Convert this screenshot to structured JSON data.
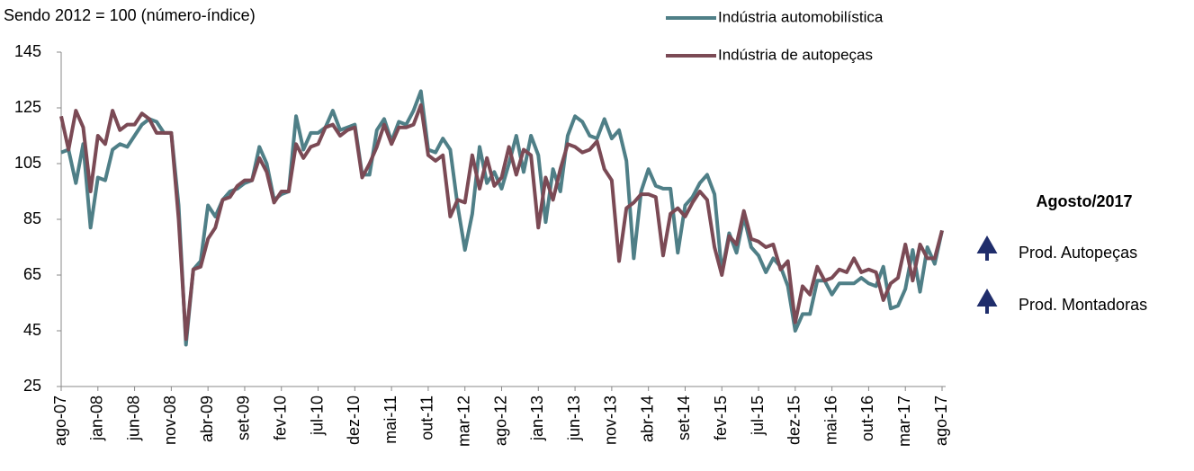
{
  "chart_data": {
    "type": "line",
    "subtitle": "Sendo 2012 = 100 (número-índice)",
    "categories": [
      "ago-07",
      null,
      null,
      null,
      null,
      "jan-08",
      null,
      null,
      null,
      null,
      "jun-08",
      null,
      null,
      null,
      null,
      "nov-08",
      null,
      null,
      null,
      null,
      "abr-09",
      null,
      null,
      null,
      null,
      "set-09",
      null,
      null,
      null,
      null,
      "fev-10",
      null,
      null,
      null,
      null,
      "jul-10",
      null,
      null,
      null,
      null,
      "dez-10",
      null,
      null,
      null,
      null,
      "mai-11",
      null,
      null,
      null,
      null,
      "out-11",
      null,
      null,
      null,
      null,
      "mar-12",
      null,
      null,
      null,
      null,
      "ago-12",
      null,
      null,
      null,
      null,
      "jan-13",
      null,
      null,
      null,
      null,
      "jun-13",
      null,
      null,
      null,
      null,
      "nov-13",
      null,
      null,
      null,
      null,
      "abr-14",
      null,
      null,
      null,
      null,
      "set-14",
      null,
      null,
      null,
      null,
      "fev-15",
      null,
      null,
      null,
      null,
      "jul-15",
      null,
      null,
      null,
      null,
      "dez-15",
      null,
      null,
      null,
      null,
      "mai-16",
      null,
      null,
      null,
      null,
      "out-16",
      null,
      null,
      null,
      null,
      "mar-17",
      null,
      null,
      null,
      null,
      "ago-17"
    ],
    "series": [
      {
        "name": "Indústria automobilística",
        "color": "#4f7f87",
        "values": [
          109,
          110,
          98,
          112,
          82,
          100,
          99,
          110,
          112,
          111,
          115,
          119,
          121,
          120,
          116,
          116,
          90,
          40,
          67,
          70,
          90,
          86,
          92,
          95,
          96,
          98,
          99,
          111,
          105,
          92,
          94,
          95,
          122,
          110,
          116,
          116,
          118,
          124,
          117,
          118,
          119,
          101,
          101,
          117,
          121,
          113,
          120,
          119,
          124,
          131,
          110,
          109,
          114,
          110,
          90,
          74,
          87,
          111,
          98,
          102,
          96,
          105,
          115,
          102,
          115,
          108,
          84,
          103,
          95,
          115,
          122,
          120,
          115,
          114,
          121,
          114,
          117,
          106,
          71,
          95,
          103,
          97,
          96,
          96,
          73,
          90,
          93,
          98,
          101,
          94,
          66,
          80,
          73,
          86,
          75,
          72,
          66,
          71,
          68,
          61,
          45,
          51,
          51,
          63,
          63,
          58,
          62,
          62,
          62,
          64,
          62,
          61,
          68,
          53,
          54,
          60,
          74,
          59,
          75,
          69,
          81
        ]
      },
      {
        "name": "Indústria de autopeças",
        "color": "#7b4a55",
        "values": [
          122,
          110,
          124,
          118,
          95,
          115,
          112,
          124,
          117,
          119,
          119,
          123,
          121,
          116,
          116,
          116,
          85,
          42,
          67,
          68,
          78,
          82,
          92,
          93,
          97,
          99,
          99,
          107,
          102,
          91,
          95,
          95,
          112,
          107,
          111,
          112,
          118,
          119,
          115,
          117,
          118,
          100,
          105,
          111,
          119,
          112,
          118,
          118,
          119,
          126,
          108,
          106,
          108,
          86,
          92,
          91,
          108,
          96,
          107,
          97,
          100,
          111,
          101,
          110,
          108,
          82,
          100,
          92,
          103,
          112,
          111,
          109,
          110,
          113,
          103,
          99,
          70,
          89,
          91,
          94,
          94,
          93,
          72,
          87,
          89,
          86,
          91,
          95,
          92,
          75,
          65,
          79,
          76,
          88,
          78,
          77,
          75,
          76,
          67,
          70,
          48,
          61,
          58,
          68,
          63,
          64,
          67,
          66,
          71,
          66,
          67,
          66,
          56,
          62,
          64,
          76,
          63,
          76,
          71,
          71,
          81
        ]
      }
    ],
    "ylim": [
      25,
      145
    ],
    "yticks": [
      25,
      45,
      65,
      85,
      105,
      125,
      145
    ],
    "side_panel": {
      "title": "Agosto/2017",
      "items": [
        "Prod. Autopeças",
        "Prod. Montadoras"
      ]
    }
  }
}
